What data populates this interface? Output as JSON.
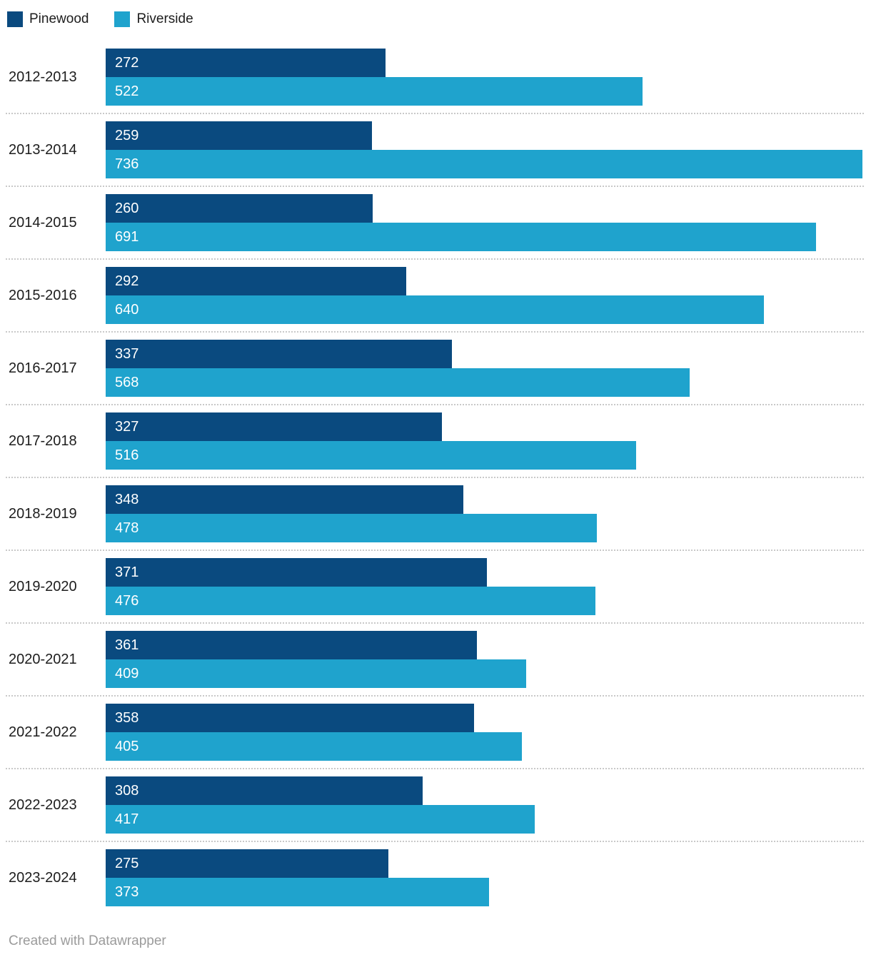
{
  "chart_data": {
    "type": "bar",
    "orientation": "horizontal",
    "title": "",
    "xlabel": "",
    "ylabel": "",
    "xlim": [
      0,
      736
    ],
    "grid": false,
    "legend_position": "top-left",
    "value_labels": "inside-start",
    "separator_style": "dotted",
    "categories": [
      "2012-2013",
      "2013-2014",
      "2014-2015",
      "2015-2016",
      "2016-2017",
      "2017-2018",
      "2018-2019",
      "2019-2020",
      "2020-2021",
      "2021-2022",
      "2022-2023",
      "2023-2024"
    ],
    "series": [
      {
        "name": "Pinewood",
        "color": "#0a4a7f",
        "values": [
          272,
          259,
          260,
          292,
          337,
          327,
          348,
          371,
          361,
          358,
          308,
          275
        ]
      },
      {
        "name": "Riverside",
        "color": "#1fa3cd",
        "values": [
          522,
          736,
          691,
          640,
          568,
          516,
          478,
          476,
          409,
          405,
          417,
          373
        ]
      }
    ]
  },
  "colors": {
    "pinewood": "#0a4a7f",
    "riverside": "#1fa3cd",
    "label_text": "#1d1d1d",
    "value_text": "#ffffff",
    "separator": "#c9c9c9",
    "attribution_text": "#9b9b9b"
  },
  "footer": {
    "attribution": "Created with Datawrapper"
  }
}
